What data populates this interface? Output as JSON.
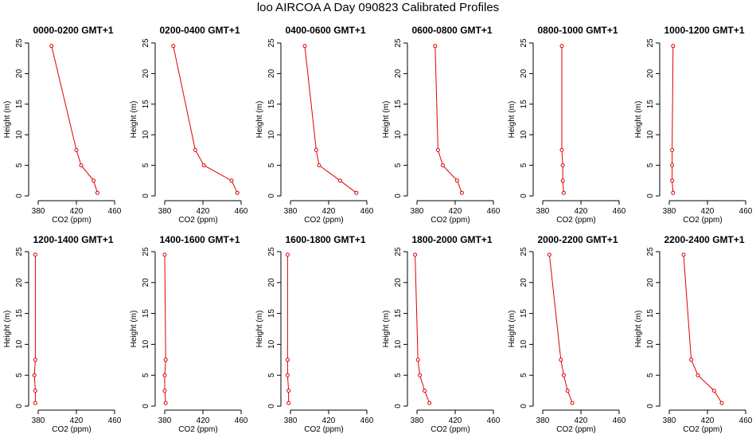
{
  "title": "loo AIRCOA A  Day 090823  Calibrated Profiles",
  "colors": {
    "line": "#e00000",
    "axis": "#000000",
    "background": "#ffffff"
  },
  "chart_data": {
    "type": "line",
    "xlabel": "CO2 (ppm)",
    "ylabel": "Height (m)",
    "xlim": [
      370,
      460
    ],
    "ylim": [
      -1,
      26
    ],
    "xticks": [
      380,
      420,
      460
    ],
    "yticks": [
      0,
      5,
      10,
      15,
      20,
      25
    ],
    "heights": [
      0.5,
      2.5,
      5.0,
      7.5,
      24.5
    ],
    "grid": false,
    "legend": "none",
    "panels": [
      {
        "title": "0000-0200 GMT+1",
        "co2": [
          442,
          438,
          425,
          420,
          394
        ]
      },
      {
        "title": "0200-0400 GMT+1",
        "co2": [
          456,
          450,
          421,
          412,
          389
        ]
      },
      {
        "title": "0400-0600 GMT+1",
        "co2": [
          449,
          432,
          410,
          407,
          395
        ]
      },
      {
        "title": "0600-0800 GMT+1",
        "co2": [
          427,
          422,
          407,
          402,
          399
        ]
      },
      {
        "title": "0800-1000 GMT+1",
        "co2": [
          402,
          401,
          401,
          400,
          400
        ]
      },
      {
        "title": "1000-1200 GMT+1",
        "co2": [
          384,
          383,
          383,
          383,
          384
        ]
      },
      {
        "title": "1200-1400 GMT+1",
        "co2": [
          377,
          377,
          376,
          377,
          377
        ]
      },
      {
        "title": "1400-1600 GMT+1",
        "co2": [
          381,
          380,
          380,
          381,
          380
        ]
      },
      {
        "title": "1600-1800 GMT+1",
        "co2": [
          378,
          378,
          377,
          377,
          377
        ]
      },
      {
        "title": "1800-2000 GMT+1",
        "co2": [
          393,
          388,
          383,
          381,
          378
        ]
      },
      {
        "title": "2000-2200 GMT+1",
        "co2": [
          411,
          406,
          402,
          399,
          387
        ]
      },
      {
        "title": "2200-2400 GMT+1",
        "co2": [
          435,
          427,
          410,
          403,
          395
        ]
      }
    ]
  }
}
